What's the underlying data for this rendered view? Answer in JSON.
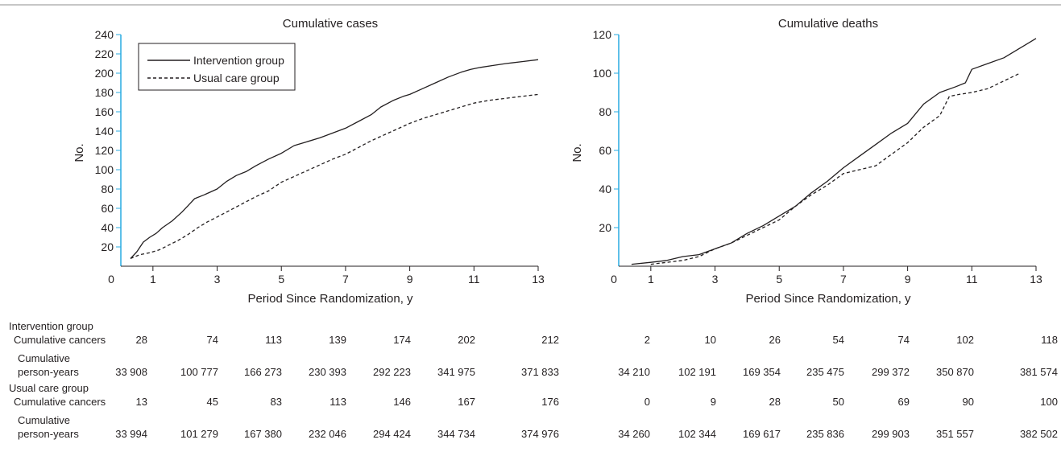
{
  "chart_data": [
    {
      "type": "line",
      "title": "Cumulative cases",
      "xlabel": "Period Since Randomization, y",
      "ylabel": "No.",
      "xlim": [
        0,
        13
      ],
      "ylim": [
        0,
        240
      ],
      "xticks": [
        0,
        1,
        3,
        5,
        7,
        9,
        11,
        13
      ],
      "yticks": [
        20,
        40,
        60,
        80,
        100,
        120,
        140,
        160,
        180,
        200,
        220,
        240
      ],
      "legend": "top-left",
      "grid": false,
      "series": [
        {
          "name": "Intervention group",
          "style": "solid",
          "x": [
            0.3,
            0.5,
            0.7,
            0.9,
            1.1,
            1.3,
            1.6,
            1.9,
            2.1,
            2.3,
            2.6,
            3.0,
            3.3,
            3.6,
            3.9,
            4.2,
            4.6,
            5.0,
            5.4,
            5.8,
            6.2,
            6.6,
            7.0,
            7.4,
            7.8,
            8.1,
            8.5,
            8.8,
            9.0,
            9.4,
            9.8,
            10.2,
            10.6,
            10.9,
            11.2,
            11.6,
            12.0,
            12.5,
            13.0
          ],
          "y": [
            8,
            15,
            25,
            30,
            34,
            40,
            47,
            56,
            63,
            70,
            74,
            80,
            88,
            94,
            98,
            104,
            111,
            117,
            125,
            129,
            133,
            138,
            143,
            150,
            157,
            165,
            172,
            176,
            178,
            184,
            190,
            196,
            201,
            204,
            206,
            208,
            210,
            212,
            214
          ]
        },
        {
          "name": "Usual care group",
          "style": "dashed",
          "x": [
            0.3,
            0.6,
            0.9,
            1.2,
            1.5,
            1.8,
            2.1,
            2.4,
            2.7,
            3.0,
            3.4,
            3.8,
            4.2,
            4.6,
            5.0,
            5.4,
            5.8,
            6.2,
            6.6,
            7.0,
            7.4,
            7.8,
            8.2,
            8.6,
            9.0,
            9.4,
            9.8,
            10.2,
            10.6,
            11.0,
            11.5,
            12.0,
            12.5,
            13.0
          ],
          "y": [
            8,
            12,
            14,
            17,
            22,
            27,
            33,
            40,
            46,
            51,
            58,
            65,
            72,
            78,
            87,
            93,
            99,
            105,
            111,
            116,
            123,
            130,
            136,
            142,
            148,
            153,
            157,
            161,
            165,
            169,
            172,
            174,
            176,
            178
          ]
        }
      ]
    },
    {
      "type": "line",
      "title": "Cumulative deaths",
      "xlabel": "Period Since Randomization, y",
      "ylabel": "No.",
      "xlim": [
        0,
        13
      ],
      "ylim": [
        0,
        120
      ],
      "xticks": [
        0,
        1,
        3,
        5,
        7,
        9,
        11,
        13
      ],
      "yticks": [
        20,
        40,
        60,
        80,
        100,
        120
      ],
      "grid": false,
      "series": [
        {
          "name": "Intervention group",
          "style": "solid",
          "x": [
            0.4,
            1.0,
            1.5,
            2.0,
            2.5,
            3.0,
            3.5,
            4.0,
            4.5,
            5.0,
            5.5,
            6.0,
            6.5,
            7.0,
            7.5,
            8.0,
            8.5,
            9.0,
            9.5,
            10.0,
            10.5,
            10.8,
            11.0,
            11.5,
            12.0,
            12.5,
            13.0
          ],
          "y": [
            1,
            2,
            3,
            5,
            6,
            9,
            12,
            17,
            21,
            26,
            31,
            38,
            44,
            51,
            57,
            63,
            69,
            74,
            84,
            90,
            93,
            95,
            102,
            105,
            108,
            113,
            118
          ]
        },
        {
          "name": "Usual care group",
          "style": "dashed",
          "x": [
            1.0,
            1.5,
            2.0,
            2.5,
            3.0,
            3.5,
            4.0,
            4.5,
            5.0,
            5.5,
            6.0,
            6.5,
            7.0,
            7.5,
            8.0,
            8.5,
            9.0,
            9.5,
            10.0,
            10.3,
            10.6,
            11.0,
            11.5,
            12.0,
            12.5
          ],
          "y": [
            1,
            2,
            3,
            5,
            9,
            12,
            16,
            20,
            24,
            31,
            37,
            42,
            48,
            50,
            52,
            58,
            64,
            72,
            78,
            88,
            89,
            90,
            92,
            96,
            100
          ]
        }
      ]
    }
  ],
  "table": {
    "group1": "Intervention group",
    "group2": "Usual care group",
    "row_cancers": "Cumulative cancers",
    "row_py_1": "Cumulative",
    "row_py_2": "person-years",
    "intervention_cancers": [
      "28",
      "74",
      "113",
      "139",
      "174",
      "202",
      "212"
    ],
    "intervention_py": [
      "33 908",
      "100 777",
      "166 273",
      "230 393",
      "292 223",
      "341 975",
      "371 833"
    ],
    "usual_cancers": [
      "13",
      "45",
      "83",
      "113",
      "146",
      "167",
      "176"
    ],
    "usual_py": [
      "33 994",
      "101 279",
      "167 380",
      "232 046",
      "294 424",
      "344 734",
      "374 976"
    ],
    "intervention_deaths": [
      "2",
      "10",
      "26",
      "54",
      "74",
      "102",
      "118"
    ],
    "intervention_deaths_py": [
      "34 210",
      "102 191",
      "169 354",
      "235 475",
      "299 372",
      "350 870",
      "381 574"
    ],
    "usual_deaths": [
      "0",
      "9",
      "28",
      "50",
      "69",
      "90",
      "100"
    ],
    "usual_deaths_py": [
      "34 260",
      "102 344",
      "169 617",
      "235 836",
      "299 903",
      "351 557",
      "382 502"
    ]
  },
  "colors": {
    "axis": "#29abe2",
    "ink": "#231f20",
    "rule": "#8c8c8c"
  }
}
